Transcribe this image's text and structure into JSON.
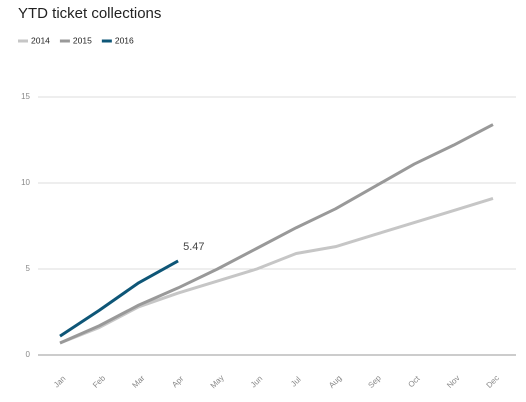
{
  "chart_data": {
    "type": "line",
    "title": "YTD ticket collections",
    "categories": [
      "Jan",
      "Feb",
      "Mar",
      "Apr",
      "May",
      "Jun",
      "Jul",
      "Aug",
      "Sep",
      "Oct",
      "Nov",
      "Dec"
    ],
    "series": [
      {
        "name": "2014",
        "color": "#c6c6c6",
        "values": [
          0.7,
          1.6,
          2.8,
          3.6,
          4.3,
          5.0,
          5.9,
          6.3,
          7.0,
          7.7,
          8.4,
          9.1
        ]
      },
      {
        "name": "2015",
        "color": "#999999",
        "values": [
          0.7,
          1.7,
          2.9,
          3.9,
          5.0,
          6.2,
          7.4,
          8.5,
          9.8,
          11.1,
          12.2,
          13.4
        ]
      },
      {
        "name": "2016",
        "color": "#0e5677",
        "values": [
          1.1,
          2.6,
          4.2,
          5.47,
          null,
          null,
          null,
          null,
          null,
          null,
          null,
          null
        ]
      }
    ],
    "ylim": [
      0,
      15
    ],
    "yticks": [
      0,
      5,
      10,
      15
    ],
    "grid": true,
    "legend": "top-left"
  }
}
